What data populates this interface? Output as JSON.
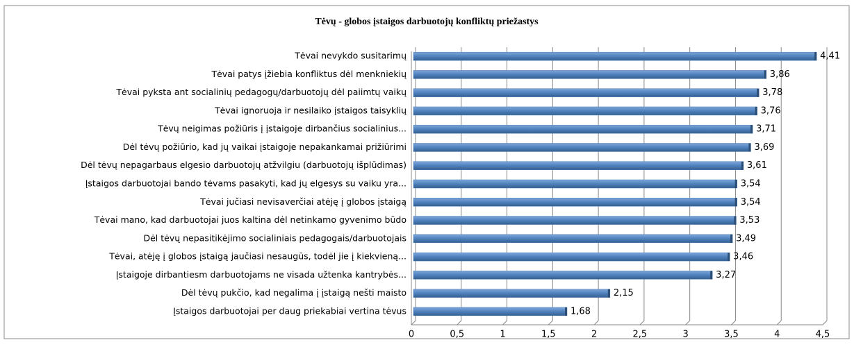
{
  "chart_data": {
    "type": "bar",
    "orientation": "horizontal",
    "title": "Tėvų - globos įstaigos darbuotojų konfliktų priežastys",
    "categories": [
      "Tėvai nevykdo susitarimų",
      "Tėvai patys įžiebia konfliktus dėl menkniekių",
      "Tėvai pyksta ant socialinių pedagogų/darbuotojų dėl paiimtų vaikų",
      "Tėvai ignoruoja ir nesilaiko įstaigos taisyklių",
      "Tėvų neigimas požiūris į įstaigoje dirbančius socialinius...",
      "Dėl tėvų požiūrio, kad jų vaikai įstaigoje nepakankamai prižiūrimi",
      "Dėl tėvų nepagarbaus elgesio darbuotojų atžvilgiu (darbuotojų išplūdimas)",
      "Įstaigos darbuotojai bando tėvams pasakyti, kad jų elgesys su vaiku yra...",
      "Tėvai jučiasi nevisaverčiai atėję į globos įstaigą",
      "Tėvai mano, kad darbuotojai juos kaltina dėl netinkamo gyvenimo būdo",
      "Dėl tėvų nepasitikėjimo socialiniais pedagogais/darbuotojais",
      "Tėvai, atėję į globos įstaigą jaučiasi nesaugūs, todėl jie į kiekvieną...",
      "Įstaigoje dirbantiesm darbuotojams ne visada užtenka kantrybės...",
      "Dėl tėvų pukčio, kad negalima į įstaigą nešti maisto",
      "Įstaigos darbuotojai per daug priekabiai vertina tėvus"
    ],
    "values": [
      4.41,
      3.86,
      3.78,
      3.76,
      3.71,
      3.69,
      3.61,
      3.54,
      3.54,
      3.53,
      3.49,
      3.46,
      3.27,
      2.15,
      1.68
    ],
    "value_labels": [
      "4,41",
      "3,86",
      "3,78",
      "3,76",
      "3,71",
      "3,69",
      "3,61",
      "3,54",
      "3,54",
      "3,53",
      "3,49",
      "3,46",
      "3,27",
      "2,15",
      "1,68"
    ],
    "color": "#4f81bd",
    "xlim": [
      0,
      4.5
    ],
    "xticks": [
      0,
      {
        "value": 0.5,
        "label": "0,5"
      },
      1,
      {
        "value": 1.5,
        "label": "1,5"
      },
      2,
      {
        "value": 2.5,
        "label": "2,5"
      },
      3,
      {
        "value": 3.5,
        "label": "3,5"
      },
      4,
      {
        "value": 4.5,
        "label": "4,5"
      }
    ],
    "grid": true
  }
}
